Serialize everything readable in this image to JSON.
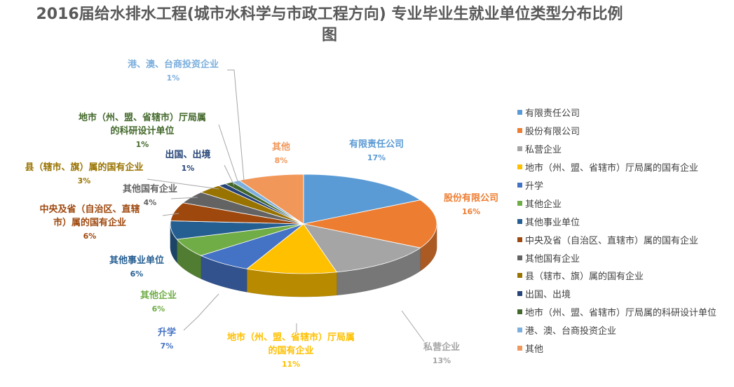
{
  "chart_data": {
    "type": "pie",
    "title": "2016届给水排水工程(城市水科学与市政工程方向) 专业毕业生就业单位类型分布比例图",
    "title_lines": [
      "2016届给水排水工程(城市水科学与市政工程方向) 专业毕业生就业单位类型分布比例",
      "图"
    ],
    "legend_position": "right",
    "categories": [
      "有限责任公司",
      "股份有限公司",
      "私营企业",
      "地市（州、盟、省辖市）厅局属的国有企业",
      "升学",
      "其他企业",
      "其他事业单位",
      "中央及省（自治区、直辖市）属的国有企业",
      "其他国有企业",
      "县（辖市、旗）属的国有企业",
      "出国、出境",
      "地市（州、盟、省辖市）厅局属的科研设计单位",
      "港、澳、台商投资企业",
      "其他"
    ],
    "values": [
      17,
      16,
      13,
      11,
      7,
      6,
      6,
      6,
      4,
      3,
      1,
      1,
      1,
      8
    ],
    "value_labels": [
      "17%",
      "16%",
      "13%",
      "11%",
      "7%",
      "6%",
      "6%",
      "6%",
      "4%",
      "3%",
      "1%",
      "1%",
      "1%",
      "8%"
    ],
    "slice_labels": [
      [
        "有限责任公司"
      ],
      [
        "股份有限公司"
      ],
      [
        "私营企业"
      ],
      [
        "地市（州、盟、省辖市）厅局属",
        "的国有企业"
      ],
      [
        "升学"
      ],
      [
        "其他企业"
      ],
      [
        "其他事业单位"
      ],
      [
        "中央及省（自治区、直辖",
        "市）属的国有企业"
      ],
      [
        "其他国有企业"
      ],
      [
        "县（辖市、旗）属的国有企业"
      ],
      [
        "出国、出境"
      ],
      [
        "地市（州、盟、省辖市）厅局属",
        "的科研设计单位"
      ],
      [
        "港、澳、台商投资企业"
      ],
      [
        "其他"
      ]
    ],
    "colors": [
      "#5b9bd5",
      "#ed7d31",
      "#a5a5a5",
      "#ffc000",
      "#4472c4",
      "#70ad47",
      "#255e91",
      "#9e480e",
      "#636363",
      "#997300",
      "#264478",
      "#43682b",
      "#7cafdd",
      "#f1975a"
    ]
  }
}
